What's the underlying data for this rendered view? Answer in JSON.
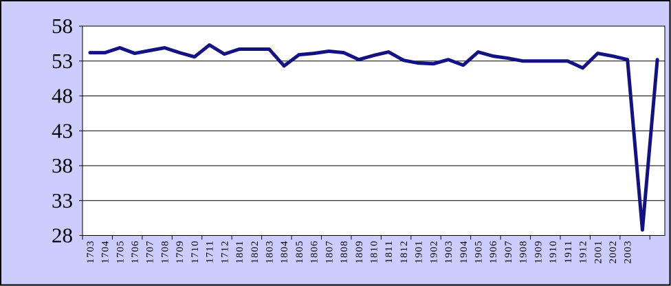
{
  "window": {
    "background": "#CCCCFF",
    "border_color": "#000000"
  },
  "chart_data": {
    "type": "line",
    "title": "",
    "xlabel": "",
    "ylabel": "",
    "legend": "none",
    "grid": true,
    "ylim": [
      28,
      58
    ],
    "yticks": [
      58,
      53,
      48,
      43,
      38,
      33,
      28
    ],
    "xtick_interval": 2,
    "categories": [
      "1703",
      "1704",
      "1705",
      "1706",
      "1707",
      "1708",
      "1709",
      "1710",
      "1711",
      "1712",
      "1801",
      "1802",
      "1803",
      "1804",
      "1805",
      "1806",
      "1807",
      "1808",
      "1809",
      "1810",
      "1811",
      "1812",
      "1901",
      "1902",
      "1903",
      "1904",
      "1905",
      "1906",
      "1907",
      "1908",
      "1909",
      "1910",
      "1911",
      "1912",
      "2001",
      "2002",
      "2003",
      "",
      ""
    ],
    "values": [
      54.2,
      54.2,
      54.9,
      54.1,
      54.5,
      54.9,
      54.2,
      53.6,
      55.3,
      54.0,
      54.7,
      54.7,
      54.7,
      52.3,
      53.9,
      54.1,
      54.4,
      54.2,
      53.2,
      53.8,
      54.3,
      53.1,
      52.7,
      52.6,
      53.2,
      52.4,
      54.3,
      53.7,
      53.4,
      53.0,
      53.0,
      53.0,
      53.0,
      52.0,
      54.1,
      53.7,
      53.2,
      28.8,
      53.2
    ],
    "line_color": "#121285",
    "line_width": 5,
    "plot_background": "#FFFFFF",
    "chart_background": "#CCCCFF",
    "axis_color": "#000000",
    "label_color": "#000000"
  }
}
